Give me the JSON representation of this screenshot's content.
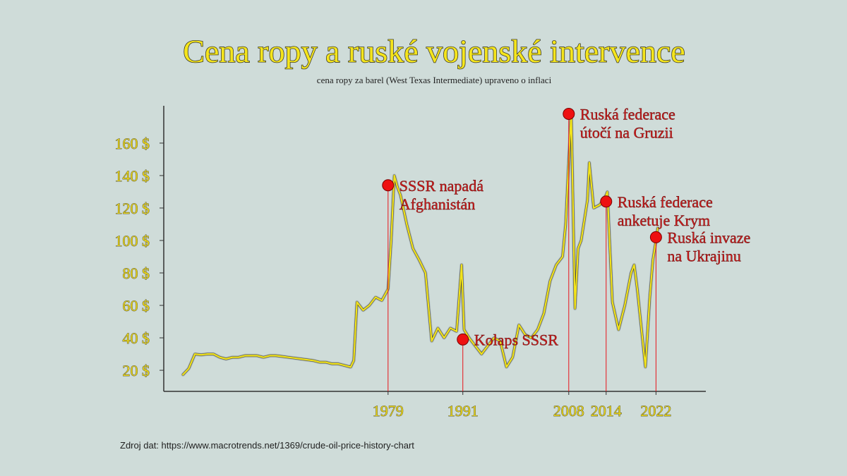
{
  "chart_data": {
    "type": "line",
    "title": "Cena ropy a ruské vojenské intervence",
    "subtitle": "cena ropy za barel (West Texas Intermediate) upraveno o inflaci",
    "source": "Zdroj dat: https://www.macrotrends.net/1369/crude-oil-price-history-chart",
    "xlim": [
      1943,
      2030
    ],
    "ylim": [
      7,
      183
    ],
    "xticks": [
      1979,
      1991,
      2008,
      2014,
      2022
    ],
    "yticks": [
      {
        "value": 20,
        "label": "20 $"
      },
      {
        "value": 40,
        "label": "40 $"
      },
      {
        "value": 60,
        "label": "60 $"
      },
      {
        "value": 80,
        "label": "80 $"
      },
      {
        "value": 100,
        "label": "100 $"
      },
      {
        "value": 120,
        "label": "120 $"
      },
      {
        "value": 140,
        "label": "140 $"
      },
      {
        "value": 160,
        "label": "160 $"
      }
    ],
    "series": [
      {
        "name": "WTI",
        "color": "#f2e31b",
        "x": [
          1946,
          1947,
          1948,
          1949,
          1950,
          1951,
          1952,
          1953,
          1954,
          1955,
          1956,
          1957,
          1958,
          1959,
          1960,
          1961,
          1962,
          1963,
          1964,
          1965,
          1966,
          1967,
          1968,
          1969,
          1970,
          1971,
          1972,
          1973,
          1973.5,
          1974,
          1975,
          1976,
          1977,
          1978,
          1979,
          1979.5,
          1980,
          1980.5,
          1981,
          1982,
          1983,
          1984,
          1985,
          1986,
          1986.5,
          1987,
          1988,
          1989,
          1990,
          1990.8,
          1991.2,
          1992,
          1993,
          1994,
          1995,
          1996,
          1997,
          1998,
          1999,
          2000,
          2001,
          2002,
          2003,
          2004,
          2005,
          2006,
          2007,
          2007.5,
          2008.4,
          2009,
          2009.5,
          2010,
          2011,
          2011.3,
          2012,
          2013,
          2014,
          2014.2,
          2015,
          2016,
          2017,
          2018,
          2018.5,
          2019,
          2020.3,
          2021,
          2021.5,
          2022,
          2022.3
        ],
        "values": [
          17,
          21,
          30,
          29.5,
          30,
          30,
          28,
          27,
          28,
          28,
          29,
          29,
          29,
          28,
          29,
          29,
          28.5,
          28,
          27.5,
          27,
          26.5,
          26,
          25,
          25,
          24,
          24,
          23,
          22,
          26,
          62,
          57,
          60,
          65,
          63,
          70,
          100,
          140,
          133,
          128,
          110,
          95,
          88,
          80,
          38,
          42,
          46,
          40,
          46,
          44,
          85,
          45,
          40,
          35,
          30,
          35,
          40,
          38,
          22,
          28,
          48,
          42,
          40,
          45,
          55,
          75,
          85,
          90,
          110,
          180,
          58,
          95,
          100,
          125,
          148,
          120,
          122,
          128,
          130,
          62,
          45,
          60,
          80,
          85,
          70,
          22,
          65,
          88,
          100,
          108
        ]
      }
    ],
    "annotations": [
      {
        "x": 1979,
        "y": 134,
        "label": [
          "SSSR napadá",
          "Afghanistán"
        ]
      },
      {
        "x": 1991,
        "y": 39,
        "label": [
          "Kolaps SSSR"
        ]
      },
      {
        "x": 2008,
        "y": 178,
        "label": [
          "Ruská federace",
          "útočí na Gruzii"
        ]
      },
      {
        "x": 2014,
        "y": 124,
        "label": [
          "Ruská federace",
          "anketuje Krym"
        ]
      },
      {
        "x": 2022,
        "y": 102,
        "label": [
          "Ruská invaze",
          "na Ukrajinu"
        ]
      }
    ]
  }
}
